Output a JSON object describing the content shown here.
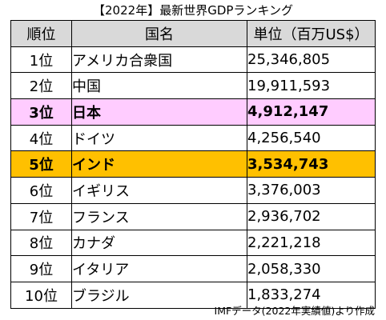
{
  "title": "【2022年】最新世界GDPランキング",
  "table": {
    "headers": [
      "順位",
      "国名",
      "単位（百万US$）"
    ],
    "rows": [
      {
        "rank": "1位",
        "country": "アメリカ合衆国",
        "gdp": "25,346,805",
        "highlight": "none"
      },
      {
        "rank": "2位",
        "country": "中国",
        "gdp": "19,911,593",
        "highlight": "none"
      },
      {
        "rank": "3位",
        "country": "日本",
        "gdp": "4,912,147",
        "highlight": "pink"
      },
      {
        "rank": "4位",
        "country": "ドイツ",
        "gdp": "4,256,540",
        "highlight": "none"
      },
      {
        "rank": "5位",
        "country": "インド",
        "gdp": "3,534,743",
        "highlight": "orange"
      },
      {
        "rank": "6位",
        "country": "イギリス",
        "gdp": "3,376,003",
        "highlight": "none"
      },
      {
        "rank": "7位",
        "country": "フランス",
        "gdp": "2,936,702",
        "highlight": "none"
      },
      {
        "rank": "8位",
        "country": "カナダ",
        "gdp": "2,221,218",
        "highlight": "none"
      },
      {
        "rank": "9位",
        "country": "イタリア",
        "gdp": "2,058,330",
        "highlight": "none"
      },
      {
        "rank": "10位",
        "country": "ブラジル",
        "gdp": "1,833,274",
        "highlight": "none"
      }
    ]
  },
  "colors": {
    "header_bg": "#d9d9d9",
    "japan_highlight": "#ffccff",
    "india_highlight": "#ffc000"
  },
  "source": "IMFデータ(2022年実績値)より作成"
}
